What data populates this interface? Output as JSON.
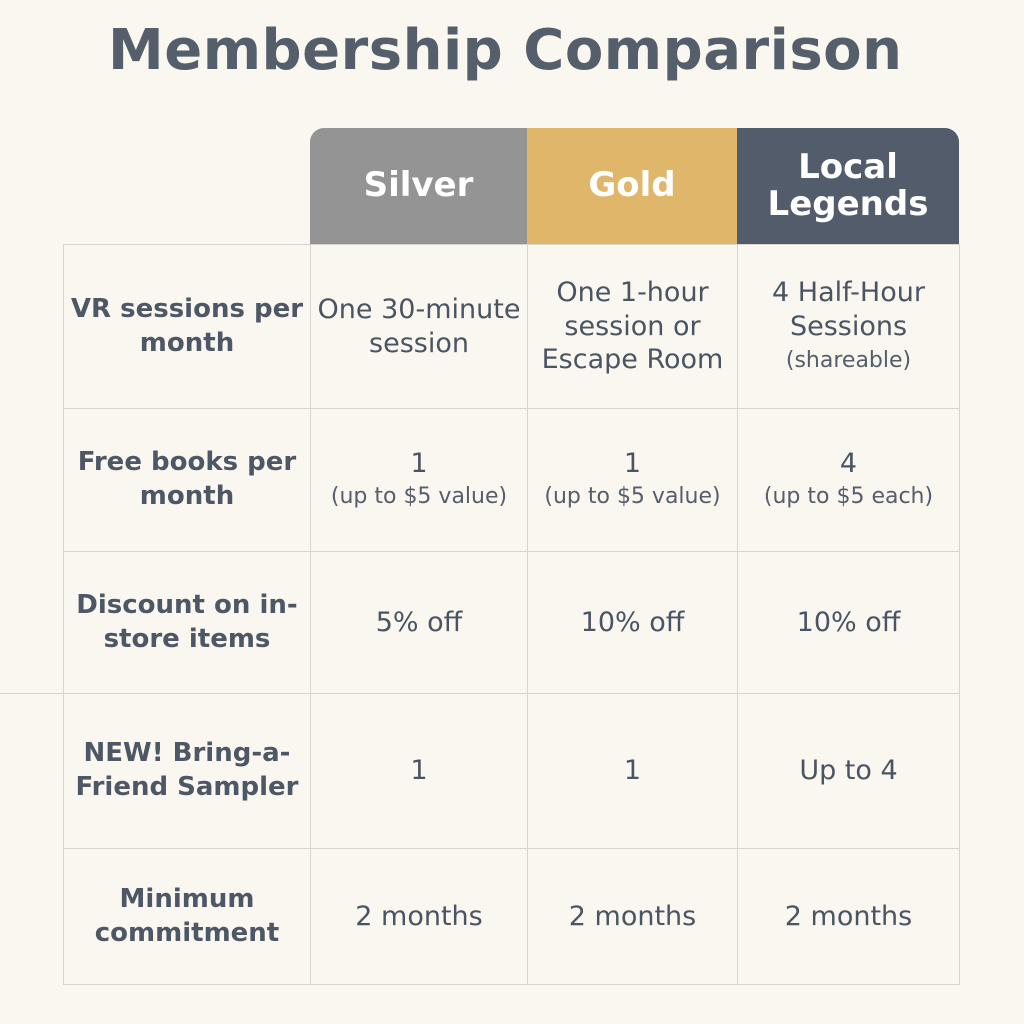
{
  "title": "Membership Comparison",
  "tiers": [
    {
      "name": "Silver",
      "color": "#949494"
    },
    {
      "name": "Gold",
      "color": "#e0b76a"
    },
    {
      "name": "Local\nLegends",
      "color": "#525c6b"
    }
  ],
  "rows": [
    {
      "label": "VR sessions per month",
      "cells": [
        {
          "main": "One 30-minute session",
          "sub": ""
        },
        {
          "main": "One 1-hour session or Escape Room",
          "sub": ""
        },
        {
          "main": "4 Half-Hour Sessions",
          "sub": "(shareable)"
        }
      ]
    },
    {
      "label": "Free books per month",
      "cells": [
        {
          "main": "1",
          "sub": "(up to $5 value)"
        },
        {
          "main": "1",
          "sub": "(up to $5 value)"
        },
        {
          "main": "4",
          "sub": "(up to $5 each)"
        }
      ]
    },
    {
      "label": "Discount on in-store items",
      "cells": [
        {
          "main": "5% off",
          "sub": ""
        },
        {
          "main": "10% off",
          "sub": ""
        },
        {
          "main": "10% off",
          "sub": ""
        }
      ]
    },
    {
      "label": "NEW! Bring-a-Friend Sampler",
      "cells": [
        {
          "main": "1",
          "sub": ""
        },
        {
          "main": "1",
          "sub": ""
        },
        {
          "main": "Up to 4",
          "sub": ""
        }
      ]
    },
    {
      "label": "Minimum commitment",
      "cells": [
        {
          "main": "2 months",
          "sub": ""
        },
        {
          "main": "2 months",
          "sub": ""
        },
        {
          "main": "2 months",
          "sub": ""
        }
      ]
    }
  ]
}
